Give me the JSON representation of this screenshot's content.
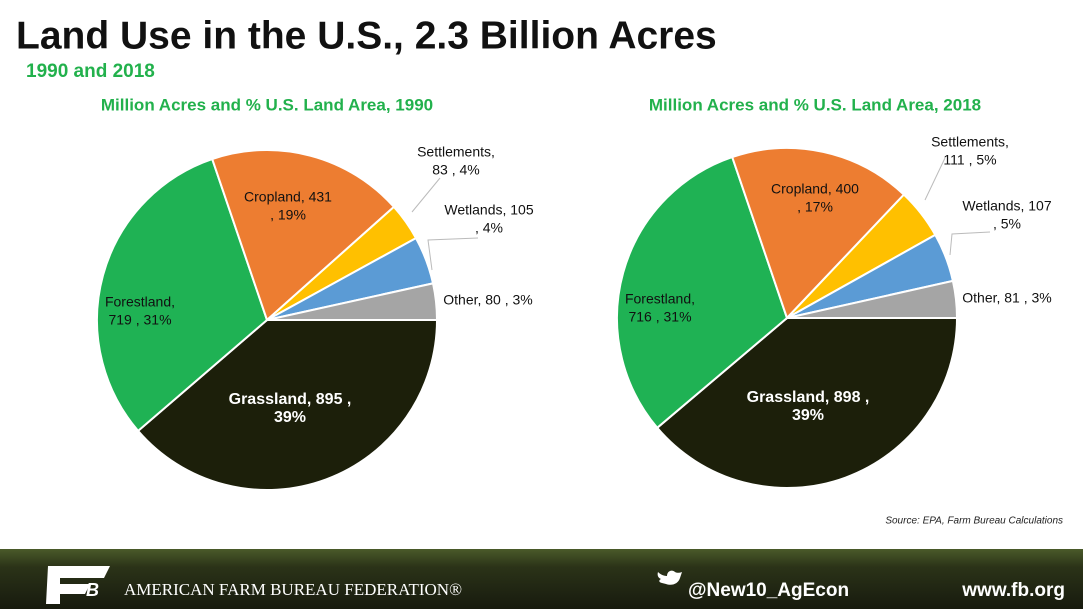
{
  "header": {
    "title": "Land Use in the U.S., 2.3 Billion Acres",
    "subtitle": "1990 and 2018"
  },
  "chart_data": [
    {
      "type": "pie",
      "title": "Million Acres and % U.S. Land Area, 1990",
      "values": [
        895,
        719,
        431,
        83,
        105,
        80
      ],
      "value_labels": [
        [
          "Grassland,  895 ,",
          "39%"
        ],
        [
          "Forestland,",
          "719 , 31%"
        ],
        [
          "Cropland,  431",
          ", 19%"
        ],
        [
          "Settlements,",
          "83 , 4%"
        ],
        [
          "Wetlands,  105",
          ", 4%"
        ],
        [
          "Other,  80 , 3%"
        ]
      ],
      "colors": [
        "#1c1f0a",
        "#1fb254",
        "#ed7d31",
        "#ffc000",
        "#5b9bd5",
        "#a5a5a5"
      ]
    },
    {
      "type": "pie",
      "title": "Million Acres and % U.S. Land Area, 2018",
      "values": [
        898,
        716,
        400,
        111,
        107,
        81
      ],
      "value_labels": [
        [
          "Grassland,  898 ,",
          "39%"
        ],
        [
          "Forestland,",
          "716 , 31%"
        ],
        [
          "Cropland,  400",
          ", 17%"
        ],
        [
          "Settlements,",
          "111 , 5%"
        ],
        [
          "Wetlands,  107",
          ", 5%"
        ],
        [
          "Other,  81 , 3%"
        ]
      ],
      "colors": [
        "#1c1f0a",
        "#1fb254",
        "#ed7d31",
        "#ffc000",
        "#5b9bd5",
        "#a5a5a5"
      ]
    }
  ],
  "source": "Source: EPA, Farm Bureau Calculations",
  "footer": {
    "organization": "AMERICAN FARM BUREAU FEDERATION®",
    "twitter": "@New10_AgEcon",
    "website": "www.fb.org"
  }
}
